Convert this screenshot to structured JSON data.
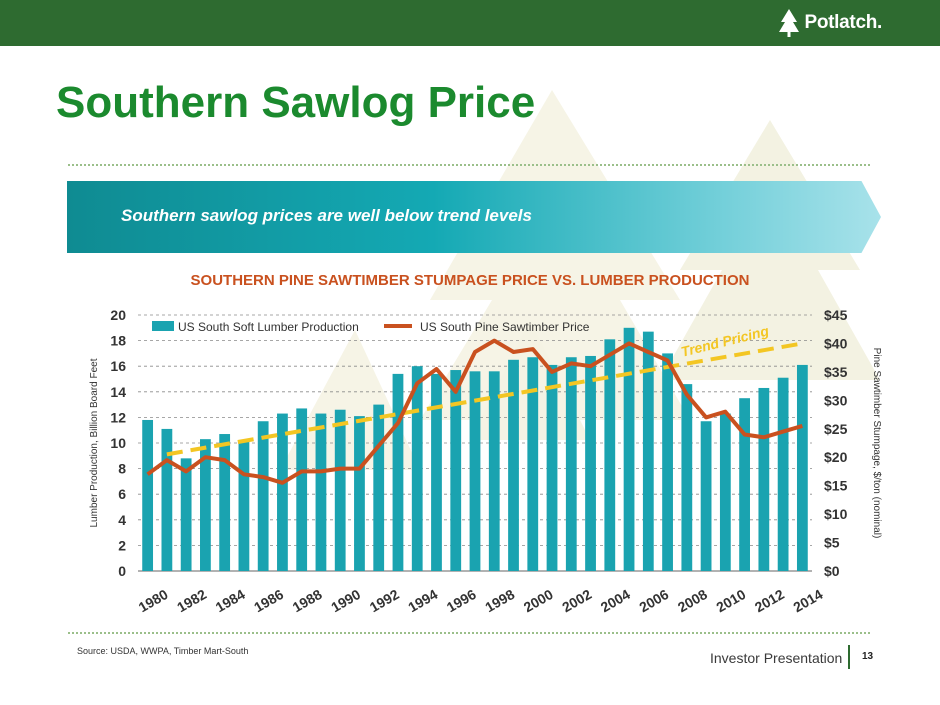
{
  "header": {
    "brand": "Potlatch."
  },
  "title": "Southern Sawlog Price",
  "banner": "Southern sawlog prices are well below trend levels",
  "chart_data": {
    "type": "bar+line",
    "title": "SOUTHERN PINE SAWTIMBER STUMPAGE PRICE VS. LUMBER PRODUCTION",
    "x": [
      1980,
      1981,
      1982,
      1983,
      1984,
      1985,
      1986,
      1987,
      1988,
      1989,
      1990,
      1991,
      1992,
      1993,
      1994,
      1995,
      1996,
      1997,
      1998,
      1999,
      2000,
      2001,
      2002,
      2003,
      2004,
      2005,
      2006,
      2007,
      2008,
      2009,
      2010,
      2011,
      2012,
      2013,
      2014
    ],
    "x_tick_labels": [
      "1980",
      "1982",
      "1984",
      "1986",
      "1988",
      "1990",
      "1992",
      "1994",
      "1996",
      "1998",
      "2000",
      "2002",
      "2004",
      "2006",
      "2008",
      "2010",
      "2012",
      "2014"
    ],
    "y_left": {
      "label": "Lumber Production, Billion Board Feet",
      "min": 0,
      "max": 20,
      "ticks": [
        "0",
        "2",
        "4",
        "6",
        "8",
        "10",
        "12",
        "14",
        "16",
        "18",
        "20"
      ]
    },
    "y_right": {
      "label": "Pine Sawtimber Stumpage, $/ton (nominal)",
      "min": 0,
      "max": 45,
      "ticks": [
        "$0",
        "$5",
        "$10",
        "$15",
        "$20",
        "$25",
        "$30",
        "$35",
        "$40",
        "$45"
      ]
    },
    "series": [
      {
        "name": "US South Soft Lumber Production",
        "type": "bar",
        "axis": "left",
        "color": "#1aa3b0",
        "values": [
          11.8,
          11.1,
          8.8,
          10.3,
          10.7,
          10.2,
          11.7,
          12.3,
          12.7,
          12.3,
          12.6,
          12.1,
          13.0,
          15.4,
          16.0,
          15.4,
          15.7,
          15.6,
          15.6,
          16.5,
          16.7,
          16.1,
          16.7,
          16.8,
          18.1,
          19.0,
          18.7,
          17.0,
          14.6,
          11.7,
          12.3,
          13.5,
          14.3,
          15.1,
          16.1
        ]
      },
      {
        "name": "US South Pine Sawtimber Price",
        "type": "line",
        "axis": "right",
        "color": "#c9511f",
        "values": [
          17.0,
          19.5,
          17.5,
          20.0,
          19.5,
          17.0,
          16.5,
          15.5,
          17.5,
          17.5,
          18.0,
          18.0,
          22.0,
          26.0,
          33.0,
          35.5,
          31.5,
          38.5,
          40.5,
          38.5,
          39.0,
          35.0,
          36.5,
          36.0,
          38.0,
          40.0,
          38.5,
          37.0,
          31.0,
          27.0,
          28.0,
          24.0,
          23.5,
          24.5,
          25.5
        ]
      }
    ],
    "trend": {
      "label": "Trend Pricing",
      "color": "#f3c623",
      "start": [
        1981,
        20.5
      ],
      "end": [
        2014,
        40.0
      ]
    },
    "grid": true,
    "legend": "top-left"
  },
  "source": "Source: USDA, WWPA, Timber Mart-South",
  "footer": {
    "label": "Investor Presentation",
    "page": "13"
  },
  "colors": {
    "brand_green": "#2e6b30",
    "title_green": "#1b8a2e",
    "accent_orange": "#c9511f",
    "bar_teal": "#1aa3b0",
    "trend_yellow": "#f3c623"
  }
}
